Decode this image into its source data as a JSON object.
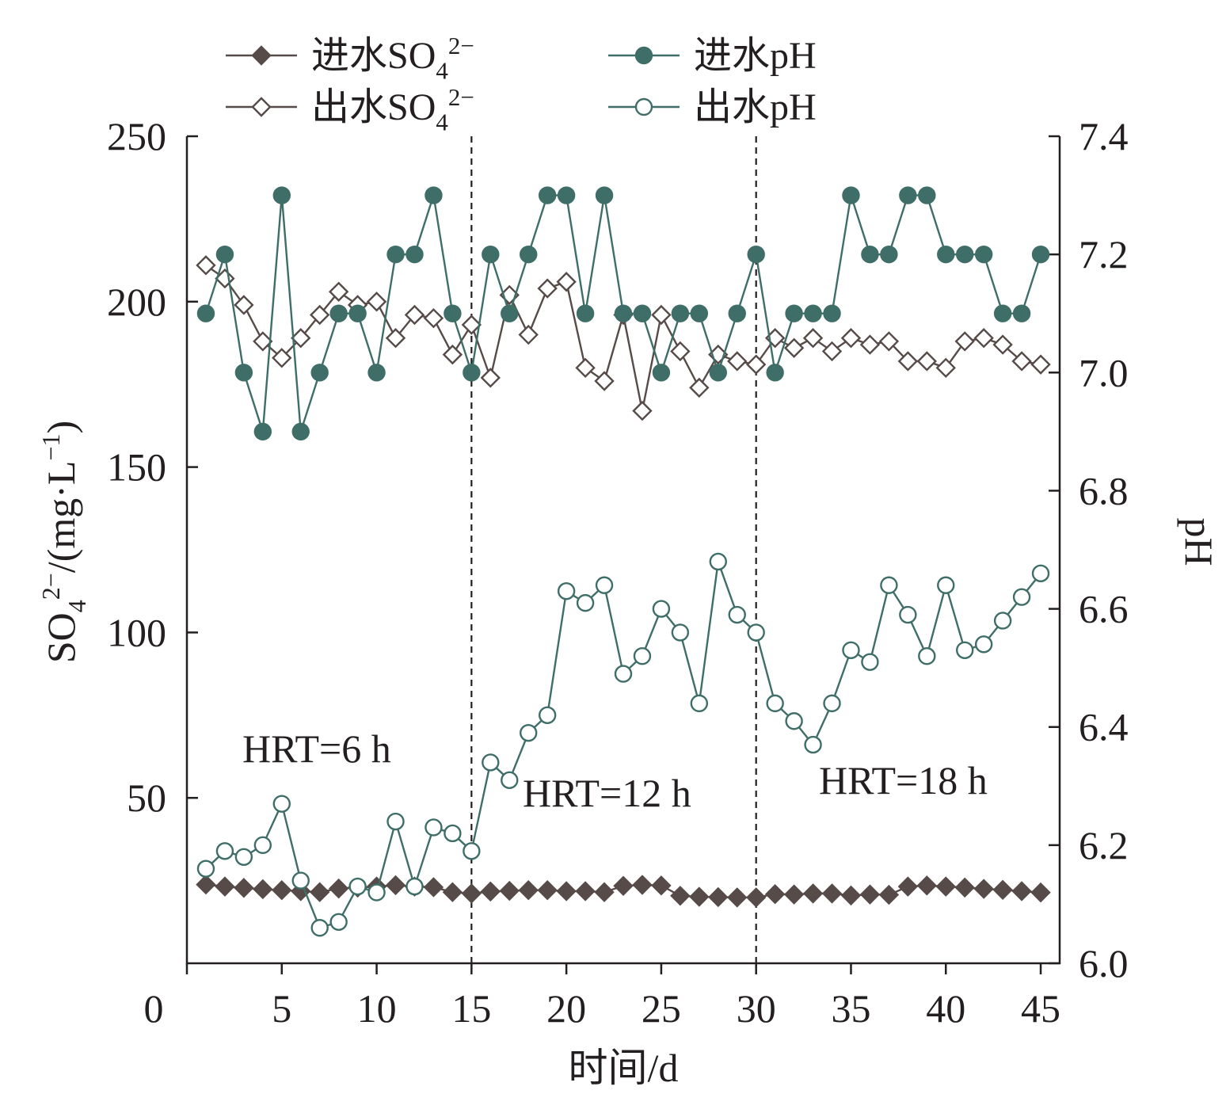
{
  "chart_data": {
    "type": "line",
    "xlabel": "时间/d",
    "ylabel": "SO₄²⁻/(mg·L⁻¹)",
    "y2label": "pH",
    "xlim": [
      0,
      46
    ],
    "ylim": [
      0,
      250
    ],
    "y2lim": [
      6.0,
      7.4
    ],
    "x_ticks": [
      0,
      5,
      10,
      15,
      20,
      25,
      30,
      35,
      40,
      45
    ],
    "y_ticks": [
      50,
      100,
      150,
      200,
      250
    ],
    "y2_ticks": [
      6.0,
      6.2,
      6.4,
      6.6,
      6.8,
      7.0,
      7.2,
      7.4
    ],
    "grid": false,
    "legend_position": "top",
    "phase_dividers": [
      15,
      30
    ],
    "annotations": [
      "HRT=6 h",
      "HRT=12 h",
      "HRT=18 h"
    ],
    "x": [
      1,
      2,
      3,
      4,
      5,
      6,
      7,
      8,
      9,
      10,
      11,
      12,
      13,
      14,
      15,
      16,
      17,
      18,
      19,
      20,
      21,
      22,
      23,
      24,
      25,
      26,
      27,
      28,
      29,
      30,
      31,
      32,
      33,
      34,
      35,
      36,
      37,
      38,
      39,
      40,
      41,
      42,
      43,
      44,
      45
    ],
    "series": [
      {
        "name": "进水SO₄²⁻",
        "axis": "left",
        "marker": "diamond-filled",
        "color": "#564b48",
        "values": [
          23.8,
          23.2,
          22.8,
          22.4,
          22.1,
          21.8,
          21.5,
          22.6,
          22.9,
          23.2,
          23.6,
          23.2,
          23.0,
          21.5,
          21.1,
          21.7,
          21.9,
          22.1,
          22.1,
          21.8,
          21.8,
          21.5,
          23.4,
          23.7,
          23.5,
          20.4,
          20.1,
          20.0,
          19.9,
          19.9,
          20.9,
          20.8,
          21.1,
          21.1,
          20.5,
          20.8,
          20.7,
          23.2,
          23.5,
          23.2,
          22.9,
          22.5,
          22.2,
          21.8,
          21.4
        ]
      },
      {
        "name": "出水SO₄²⁻",
        "axis": "left",
        "marker": "diamond-open",
        "color": "#564b48",
        "values": [
          211,
          207,
          199,
          188,
          183,
          189,
          196,
          203,
          199,
          200,
          189,
          196,
          195,
          184,
          193,
          177,
          202,
          190,
          204,
          206,
          180,
          176,
          196,
          167,
          196,
          185,
          174,
          184,
          182,
          181,
          189,
          186,
          189,
          185,
          189,
          187,
          188,
          182,
          182,
          180,
          188,
          189,
          187,
          182,
          181
        ]
      },
      {
        "name": "进水pH",
        "axis": "right",
        "marker": "circle-filled",
        "color": "#3f6e68",
        "values": [
          7.1,
          7.2,
          7.0,
          6.9,
          7.3,
          6.9,
          7.0,
          7.1,
          7.1,
          7.0,
          7.2,
          7.2,
          7.3,
          7.1,
          7.0,
          7.2,
          7.1,
          7.2,
          7.3,
          7.3,
          7.1,
          7.3,
          7.1,
          7.1,
          7.0,
          7.1,
          7.1,
          7.0,
          7.1,
          7.2,
          7.0,
          7.1,
          7.1,
          7.1,
          7.3,
          7.2,
          7.2,
          7.3,
          7.3,
          7.2,
          7.2,
          7.2,
          7.1,
          7.1,
          7.2
        ]
      },
      {
        "name": "出水pH",
        "axis": "right",
        "marker": "circle-open",
        "color": "#3f6e68",
        "values": [
          6.16,
          6.19,
          6.18,
          6.2,
          6.27,
          6.14,
          6.06,
          6.07,
          6.13,
          6.12,
          6.24,
          6.13,
          6.23,
          6.22,
          6.19,
          6.34,
          6.31,
          6.39,
          6.42,
          6.63,
          6.61,
          6.64,
          6.49,
          6.52,
          6.6,
          6.56,
          6.44,
          6.68,
          6.59,
          6.56,
          6.44,
          6.41,
          6.37,
          6.44,
          6.53,
          6.51,
          6.64,
          6.59,
          6.52,
          6.64,
          6.53,
          6.54,
          6.58,
          6.62,
          6.66
        ]
      }
    ]
  }
}
